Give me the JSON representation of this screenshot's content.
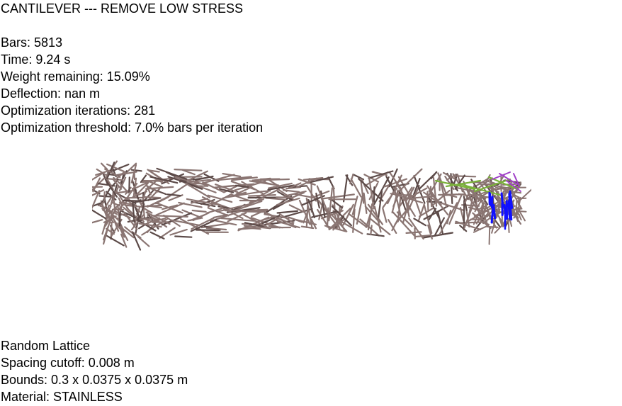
{
  "header": {
    "title": "CANTILEVER --- REMOVE LOW STRESS"
  },
  "stats": {
    "bars": "Bars: 5813",
    "time": "Time: 9.24 s",
    "weight": "Weight remaining: 15.09%",
    "deflection": "Deflection: nan m",
    "iterations": "Optimization iterations: 281",
    "threshold": "Optimization threshold: 7.0% bars per iteration"
  },
  "footer": {
    "lattice": "Random Lattice",
    "spacing": "Spacing cutoff: 0.008 m",
    "bounds": "Bounds: 0.3 x 0.0375 x 0.0375 m",
    "material": "Material: STAINLESS"
  },
  "colors": {
    "bar": "#8a7572",
    "bar_dark": "#5c4a48",
    "load": "#1010ff",
    "highlight_green": "#7ab23a",
    "highlight_purple": "#a040c8"
  }
}
